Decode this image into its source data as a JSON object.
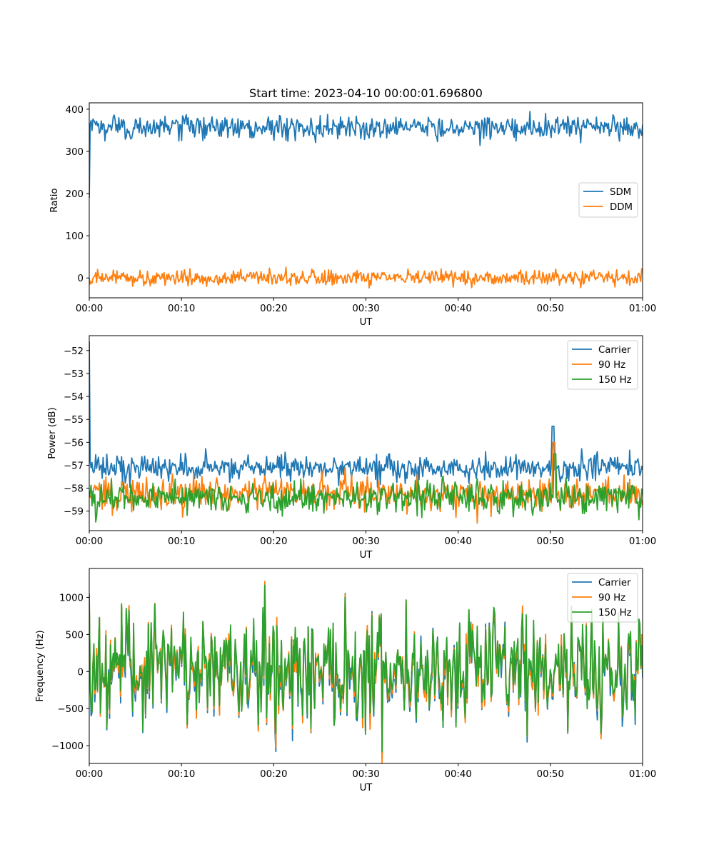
{
  "colors": {
    "blue": "#1f77b4",
    "orange": "#ff7f0e",
    "green": "#2ca02c"
  },
  "chart_data": [
    {
      "type": "line",
      "title": "Start time: 2023-04-10 00:00:01.696800",
      "xlabel": "UT",
      "ylabel": "Ratio",
      "x_ticks": [
        "00:00",
        "00:10",
        "00:20",
        "00:30",
        "00:40",
        "00:50",
        "01:00"
      ],
      "x_range_minutes": [
        0,
        60
      ],
      "ylim": [
        -47,
        415
      ],
      "y_ticks": [
        0,
        100,
        200,
        300,
        400
      ],
      "legend_position": "center-right",
      "grid": false,
      "series": [
        {
          "name": "SDM",
          "color": "#1f77b4",
          "start_value": 190,
          "mean": 357,
          "noise": 14
        },
        {
          "name": "DDM",
          "color": "#ff7f0e",
          "start_value": 0,
          "mean": 0,
          "noise": 9
        }
      ]
    },
    {
      "type": "line",
      "title": "",
      "xlabel": "UT",
      "ylabel": "Power (dB)",
      "x_ticks": [
        "00:00",
        "00:10",
        "00:20",
        "00:30",
        "00:40",
        "00:50",
        "01:00"
      ],
      "x_range_minutes": [
        0,
        60
      ],
      "ylim": [
        -59.85,
        -51.35
      ],
      "y_ticks": [
        -59,
        -58,
        -57,
        -56,
        -55,
        -54,
        -53,
        -52
      ],
      "legend_position": "top-right",
      "grid": false,
      "series": [
        {
          "name": "Carrier",
          "color": "#1f77b4",
          "start_value": -51.6,
          "mean": -57.1,
          "noise": 0.28,
          "spike": {
            "minute": 50.3,
            "value": -55.3
          }
        },
        {
          "name": "90 Hz",
          "color": "#ff7f0e",
          "start_value": -58.2,
          "mean": -58.2,
          "noise": 0.35,
          "spike": {
            "minute": 50.4,
            "value": -56.0
          }
        },
        {
          "name": "150 Hz",
          "color": "#2ca02c",
          "start_value": -58.4,
          "mean": -58.4,
          "noise": 0.35,
          "spike": {
            "minute": 50.5,
            "value": -56.5
          }
        }
      ]
    },
    {
      "type": "line",
      "title": "",
      "xlabel": "UT",
      "ylabel": "Frequency (Hz)",
      "x_ticks": [
        "00:00",
        "00:10",
        "00:20",
        "00:30",
        "00:40",
        "00:50",
        "01:00"
      ],
      "x_range_minutes": [
        0,
        60
      ],
      "ylim": [
        -1240,
        1390
      ],
      "y_ticks": [
        -1000,
        -500,
        0,
        500,
        1000
      ],
      "legend_position": "top-right",
      "grid": false,
      "series": [
        {
          "name": "Carrier",
          "color": "#1f77b4",
          "start_value": 950,
          "mean": 0,
          "noise": 400
        },
        {
          "name": "90 Hz",
          "color": "#ff7f0e",
          "start_value": 1000,
          "mean": 30,
          "noise": 400
        },
        {
          "name": "150 Hz",
          "color": "#2ca02c",
          "start_value": 1050,
          "mean": 60,
          "noise": 400
        }
      ]
    }
  ]
}
